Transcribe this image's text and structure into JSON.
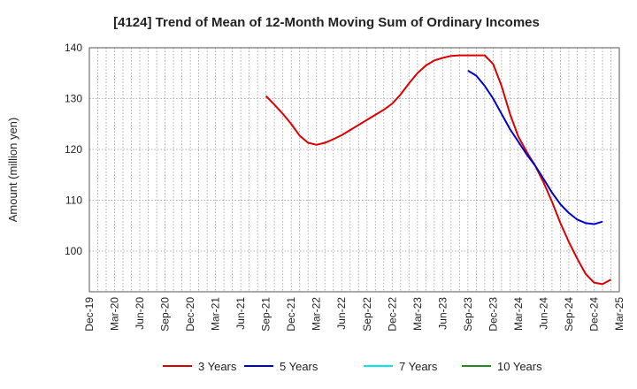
{
  "chart_data": {
    "type": "line",
    "title": "[4124]  Trend of Mean of 12-Month Moving Sum of Ordinary Incomes",
    "xlabel": "",
    "ylabel": "Amount (million yen)",
    "ylim": [
      92,
      140
    ],
    "yticks": [
      100,
      110,
      120,
      130,
      140
    ],
    "x_ticks": [
      "Dec-19",
      "Mar-20",
      "Jun-20",
      "Sep-20",
      "Dec-20",
      "Mar-21",
      "Jun-21",
      "Sep-21",
      "Dec-21",
      "Mar-22",
      "Jun-22",
      "Sep-22",
      "Dec-22",
      "Mar-23",
      "Jun-23",
      "Sep-23",
      "Dec-23",
      "Mar-24",
      "Jun-24",
      "Sep-24",
      "Dec-24",
      "Mar-25"
    ],
    "grid": true,
    "legend_position": "bottom",
    "series": [
      {
        "name": "3 Years",
        "color": "#dd0000",
        "start_index": 21,
        "values": [
          130.5,
          128.8,
          127.0,
          125.0,
          122.7,
          121.3,
          120.9,
          121.3,
          122.0,
          122.8,
          123.8,
          124.8,
          125.8,
          126.8,
          127.8,
          129.0,
          130.8,
          133.0,
          135.0,
          136.5,
          137.5,
          138.0,
          138.4,
          138.5,
          138.5,
          138.5,
          138.5,
          136.8,
          132.5,
          127.0,
          122.5,
          119.5,
          116.8,
          113.5,
          109.7,
          105.5,
          101.8,
          98.5,
          95.5,
          93.8,
          93.5,
          94.4
        ]
      },
      {
        "name": "5 Years",
        "color": "#0000cc",
        "start_index": 45,
        "values": [
          135.5,
          134.5,
          132.5,
          130.0,
          127.0,
          124.0,
          121.5,
          119.0,
          116.8,
          114.2,
          111.5,
          109.2,
          107.5,
          106.2,
          105.5,
          105.3,
          105.8
        ]
      },
      {
        "name": "7 Years",
        "color": "#00e5ee",
        "start_index": 0,
        "values": []
      },
      {
        "name": "10 Years",
        "color": "#228b22",
        "start_index": 0,
        "values": []
      }
    ]
  }
}
